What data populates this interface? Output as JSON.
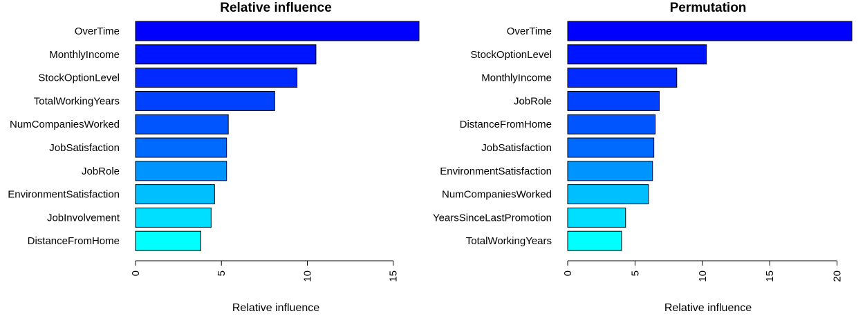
{
  "chart_data": [
    {
      "type": "bar",
      "orientation": "horizontal",
      "title": "Relative influence",
      "xlabel": "Relative influence",
      "ylabel": "",
      "xlim": [
        0,
        16.5
      ],
      "xticks": [
        0,
        5,
        10,
        15
      ],
      "categories": [
        "OverTime",
        "MonthlyIncome",
        "StockOptionLevel",
        "TotalWorkingYears",
        "NumCompaniesWorked",
        "JobSatisfaction",
        "JobRole",
        "EnvironmentSatisfaction",
        "JobInvolvement",
        "DistanceFromHome"
      ],
      "values": [
        16.5,
        10.5,
        9.4,
        8.1,
        5.4,
        5.3,
        5.3,
        4.6,
        4.4,
        3.8
      ],
      "colors": [
        "#0000ff",
        "#0015ff",
        "#002aff",
        "#0040ff",
        "#0055ff",
        "#006aff",
        "#0094ff",
        "#00bfff",
        "#00dfff",
        "#00ffff"
      ],
      "grid": false
    },
    {
      "type": "bar",
      "orientation": "horizontal",
      "title": "Permutation",
      "xlabel": "Relative influence",
      "ylabel": "",
      "xlim": [
        0,
        21.1
      ],
      "xticks": [
        0,
        5,
        10,
        15,
        20
      ],
      "categories": [
        "OverTime",
        "StockOptionLevel",
        "MonthlyIncome",
        "JobRole",
        "DistanceFromHome",
        "JobSatisfaction",
        "EnvironmentSatisfaction",
        "NumCompaniesWorked",
        "YearsSinceLastPromotion",
        "TotalWorkingYears"
      ],
      "values": [
        21.1,
        10.3,
        8.1,
        6.8,
        6.5,
        6.4,
        6.3,
        6.0,
        4.3,
        4.0
      ],
      "colors": [
        "#0000ff",
        "#0015ff",
        "#002aff",
        "#0040ff",
        "#0055ff",
        "#006aff",
        "#0094ff",
        "#00bfff",
        "#00dfff",
        "#00ffff"
      ],
      "grid": false
    }
  ]
}
